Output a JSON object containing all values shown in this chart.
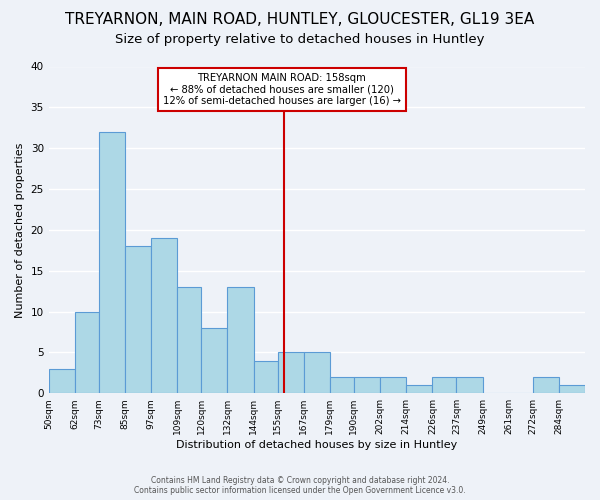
{
  "title": "TREYARNON, MAIN ROAD, HUNTLEY, GLOUCESTER, GL19 3EA",
  "subtitle": "Size of property relative to detached houses in Huntley",
  "xlabel": "Distribution of detached houses by size in Huntley",
  "ylabel": "Number of detached properties",
  "footer_lines": [
    "Contains HM Land Registry data © Crown copyright and database right 2024.",
    "Contains public sector information licensed under the Open Government Licence v3.0."
  ],
  "bin_labels": [
    "50sqm",
    "62sqm",
    "73sqm",
    "85sqm",
    "97sqm",
    "109sqm",
    "120sqm",
    "132sqm",
    "144sqm",
    "155sqm",
    "167sqm",
    "179sqm",
    "190sqm",
    "202sqm",
    "214sqm",
    "226sqm",
    "237sqm",
    "249sqm",
    "261sqm",
    "272sqm",
    "284sqm"
  ],
  "bin_edges": [
    50,
    62,
    73,
    85,
    97,
    109,
    120,
    132,
    144,
    155,
    167,
    179,
    190,
    202,
    214,
    226,
    237,
    249,
    261,
    272,
    284,
    296
  ],
  "counts": [
    3,
    10,
    32,
    18,
    19,
    13,
    8,
    13,
    4,
    5,
    5,
    2,
    2,
    2,
    1,
    2,
    2,
    0,
    0,
    2,
    1
  ],
  "bar_color": "#add8e6",
  "bar_edge_color": "#5b9bd5",
  "reference_value": 158,
  "reference_line_color": "#cc0000",
  "annotation_title": "TREYARNON MAIN ROAD: 158sqm",
  "annotation_line1": "← 88% of detached houses are smaller (120)",
  "annotation_line2": "12% of semi-detached houses are larger (16) →",
  "annotation_box_edge_color": "#cc0000",
  "ylim": [
    0,
    40
  ],
  "yticks": [
    0,
    5,
    10,
    15,
    20,
    25,
    30,
    35,
    40
  ],
  "background_color": "#eef2f8",
  "title_fontsize": 11,
  "subtitle_fontsize": 9.5
}
